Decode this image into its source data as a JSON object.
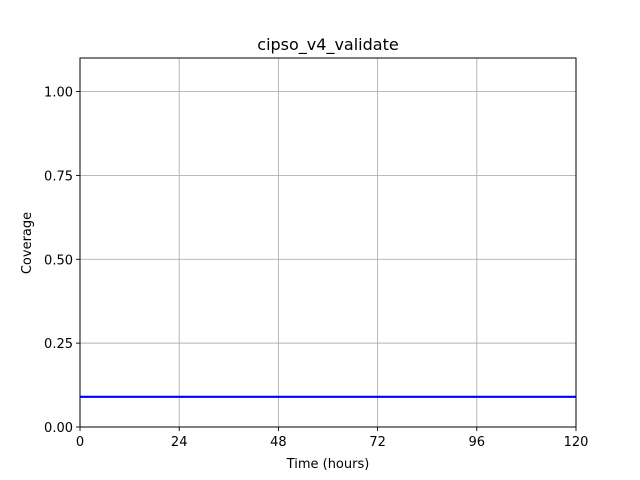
{
  "chart_data": {
    "type": "line",
    "title": "cipso_v4_validate",
    "xlabel": "Time (hours)",
    "ylabel": "Coverage",
    "xlim": [
      0,
      120
    ],
    "ylim": [
      0,
      1.1
    ],
    "xticks": [
      0,
      24,
      48,
      72,
      96,
      120
    ],
    "xtick_labels": [
      "0",
      "24",
      "48",
      "72",
      "96",
      "120"
    ],
    "yticks": [
      0,
      0.25,
      0.5,
      0.75,
      1.0
    ],
    "ytick_labels": [
      "0.00",
      "0.25",
      "0.50",
      "0.75",
      "1.00"
    ],
    "grid": true,
    "series": [
      {
        "color": "#0000ff",
        "x": [
          0,
          120
        ],
        "y": [
          0.09,
          0.09
        ]
      }
    ]
  }
}
